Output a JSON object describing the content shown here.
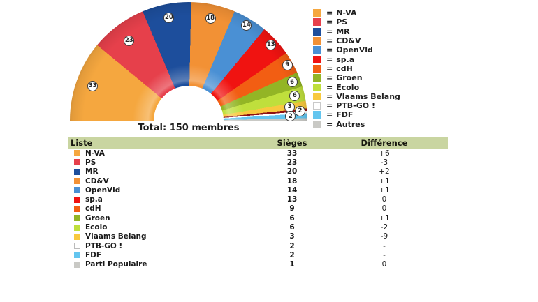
{
  "ui": {
    "total_label": "Total: 150 membres",
    "legend_prefix": "=",
    "table_headers": {
      "liste": "Liste",
      "sieges": "Sièges",
      "difference": "Différence"
    }
  },
  "chart_data": {
    "type": "pie",
    "variant": "parliament-hemicycle",
    "angle_span_deg": 180,
    "total_seats": 150,
    "total_label": "Total: 150 membres",
    "legend_position": "right",
    "parties": [
      {
        "name": "N-VA",
        "legend_label": "N-VA",
        "seats": 33,
        "difference": "+6",
        "color": "#F5A73F"
      },
      {
        "name": "PS",
        "legend_label": "PS",
        "seats": 23,
        "difference": "-3",
        "color": "#E6404B"
      },
      {
        "name": "MR",
        "legend_label": "MR",
        "seats": 20,
        "difference": "+2",
        "color": "#1D4E9C"
      },
      {
        "name": "CD&V",
        "legend_label": "CD&V",
        "seats": 18,
        "difference": "+1",
        "color": "#F29135"
      },
      {
        "name": "OpenVld",
        "legend_label": "OpenVld",
        "seats": 14,
        "difference": "+1",
        "color": "#4A90D4"
      },
      {
        "name": "sp.a",
        "legend_label": "sp.a",
        "seats": 13,
        "difference": "0",
        "color": "#F01311"
      },
      {
        "name": "cdH",
        "legend_label": "cdH",
        "seats": 9,
        "difference": "0",
        "color": "#F25E13"
      },
      {
        "name": "Groen",
        "legend_label": "Groen",
        "seats": 6,
        "difference": "+1",
        "color": "#93B525"
      },
      {
        "name": "Ecolo",
        "legend_label": "Ecolo",
        "seats": 6,
        "difference": "-2",
        "color": "#BFDF3C"
      },
      {
        "name": "Vlaams Belang",
        "legend_label": "Vlaams Belang",
        "seats": 3,
        "difference": "-9",
        "color": "#F8C93E"
      },
      {
        "name": "PTB-GO !",
        "legend_label": "PTB-GO !",
        "seats": 2,
        "difference": "-",
        "color": "#FFFFFF",
        "edge_color": "#8E1111"
      },
      {
        "name": "FDF",
        "legend_label": "FDF",
        "seats": 2,
        "difference": "-",
        "color": "#63C5EF"
      },
      {
        "name": "Parti Populaire",
        "legend_label": "Autres",
        "seats": 1,
        "difference": "0",
        "color": "#C9C9C5"
      }
    ]
  }
}
